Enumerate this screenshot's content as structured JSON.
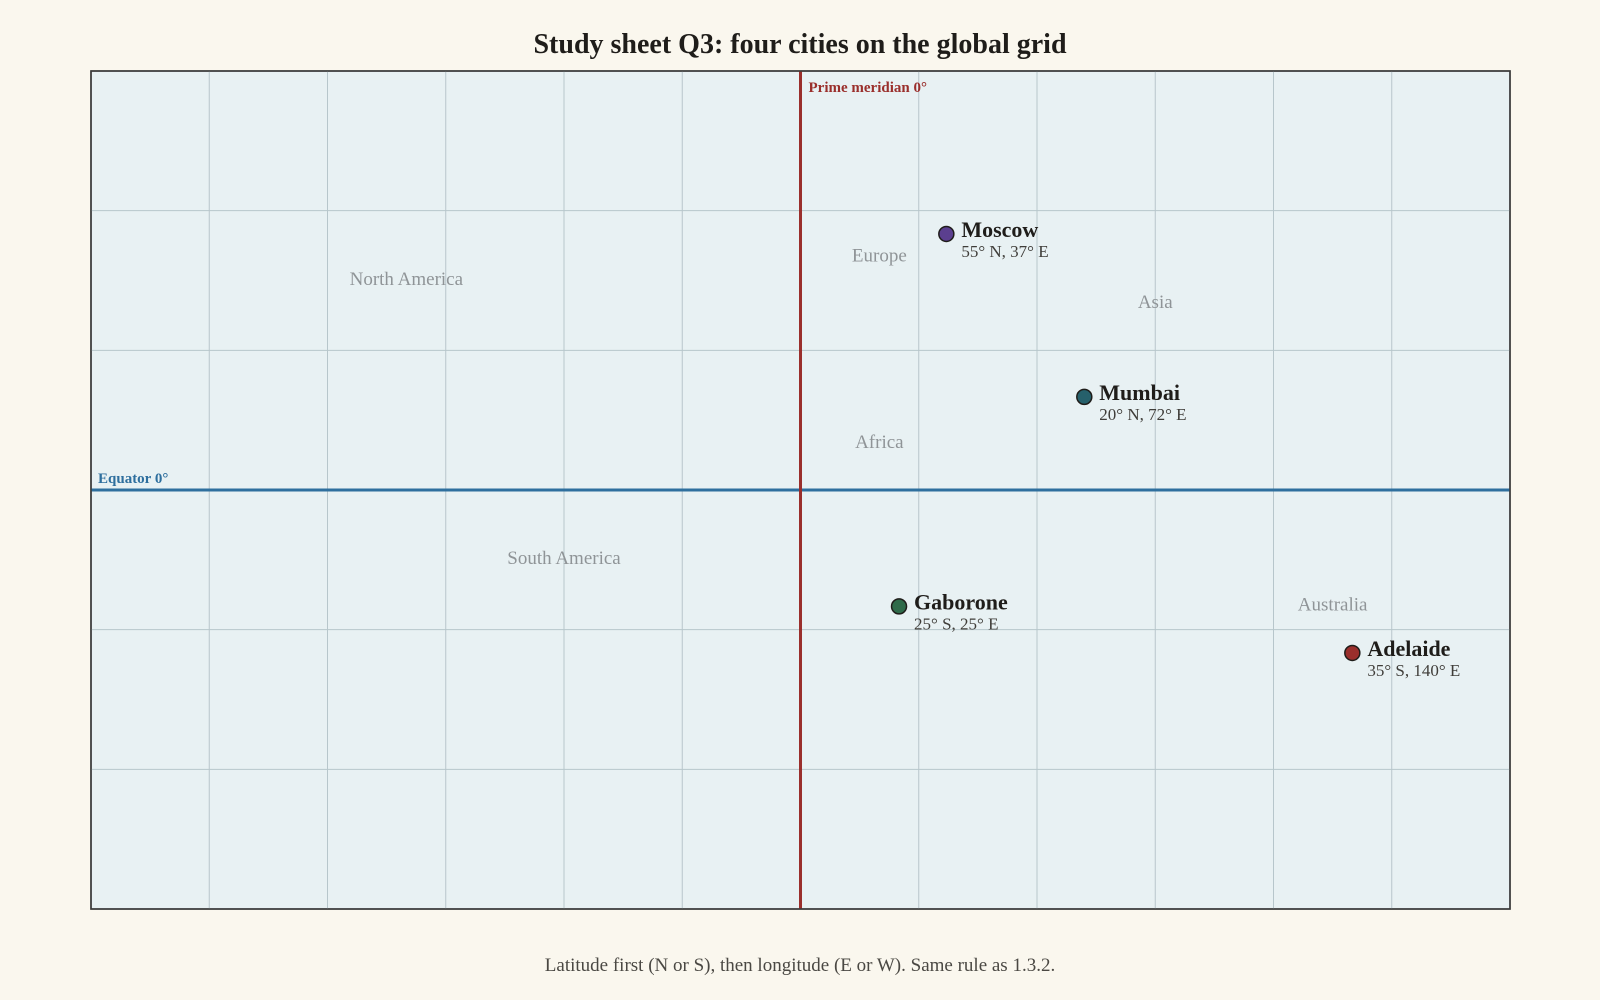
{
  "title": "Study sheet Q3: four cities on the global grid",
  "footer": "Latitude first (N or S), then longitude (E or W). Same rule as 1.3.2.",
  "map": {
    "background": "#e8f1f3",
    "grid_color": "#b7c6cb",
    "lon_range": [
      -180,
      180
    ],
    "lat_range": [
      -90,
      90
    ],
    "grid_step_lon": 30,
    "grid_step_lat": 30,
    "equator": {
      "label": "Equator 0°",
      "color": "#2e6f9e"
    },
    "prime_meridian": {
      "label": "Prime meridian 0°",
      "color": "#9a2f2c"
    },
    "regions": [
      {
        "name": "North America",
        "lat": 45,
        "lon": -100
      },
      {
        "name": "Europe",
        "lat": 50,
        "lon": 20
      },
      {
        "name": "Asia",
        "lat": 40,
        "lon": 90
      },
      {
        "name": "Africa",
        "lat": 10,
        "lon": 20
      },
      {
        "name": "South America",
        "lat": -15,
        "lon": -60
      },
      {
        "name": "Australia",
        "lat": -25,
        "lon": 135
      }
    ],
    "cities": [
      {
        "name": "Moscow",
        "coords": "55° N, 37° E",
        "lat": 55,
        "lon": 37,
        "color": "#5b3f8f"
      },
      {
        "name": "Mumbai",
        "coords": "20° N, 72° E",
        "lat": 20,
        "lon": 72,
        "color": "#26606b"
      },
      {
        "name": "Gaborone",
        "coords": "25° S, 25° E",
        "lat": -25,
        "lon": 25,
        "color": "#2f6b4a"
      },
      {
        "name": "Adelaide",
        "coords": "35° S, 140° E",
        "lat": -35,
        "lon": 140,
        "color": "#9a2f2c"
      }
    ]
  }
}
